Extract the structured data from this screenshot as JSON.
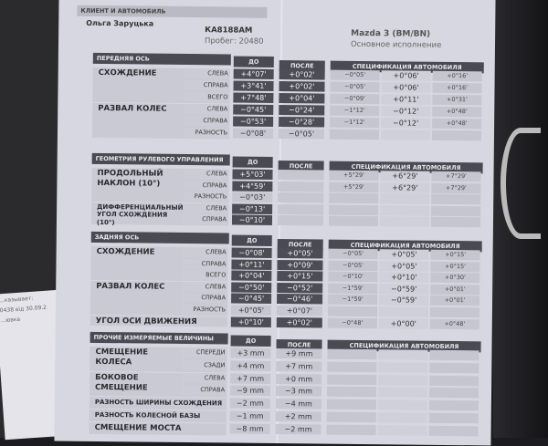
{
  "client_section": {
    "title": "КЛИЕНТ И АВТОМОБИЛЬ",
    "client_name": "Ольга Заруцька",
    "plate": "КА8188АМ",
    "mileage": "Пробег: 20480",
    "car_model": "Mazda 3 (BM/BN)",
    "car_variant": "Основное исполнение"
  },
  "columns": {
    "before": "ДО",
    "after": "ПОСЛЕ",
    "spec": "СПЕЦИФИКАЦИЯ АВТОМОБИЛЯ"
  },
  "sections": [
    {
      "title": "ПЕРЕДНЯЯ ОСЬ",
      "groups": [
        {
          "label": "СХОЖДЕНИЕ",
          "rows": [
            {
              "side": "СЛЕВА",
              "before": "+4°07'",
              "after": "+0°02'",
              "spec": [
                "−0°05'",
                "+0°06'",
                "+0°16'"
              ]
            },
            {
              "side": "СПРАВА",
              "before": "+3°41'",
              "after": "+0°02'",
              "spec": [
                "−0°05'",
                "+0°06'",
                "+0°16'"
              ]
            },
            {
              "side": "ВСЕГО",
              "before": "+7°48'",
              "after": "+0°04'",
              "spec": [
                "−0°09'",
                "+0°11'",
                "+0°31'"
              ]
            }
          ]
        },
        {
          "label": "РАЗВАЛ КОЛЕС",
          "rows": [
            {
              "side": "СЛЕВА",
              "before": "−0°45'",
              "after": "−0°24'",
              "spec": [
                "−1°12'",
                "−0°12'",
                "+0°48'"
              ]
            },
            {
              "side": "СПРАВА",
              "before": "−0°53'",
              "after": "−0°28'",
              "spec": [
                "−1°12'",
                "−0°12'",
                "+0°48'"
              ]
            },
            {
              "side": "РАЗНОСТЬ",
              "before": "−0°08'",
              "after": "−0°05'",
              "spec": [
                "",
                "",
                ""
              ]
            }
          ]
        }
      ]
    },
    {
      "title": "ГЕОМЕТРИЯ РУЛЕВОГО УПРАВЛЕНИЯ",
      "groups": [
        {
          "label": "ПРОДОЛЬНЫЙ НАКЛОН (10°)",
          "rows": [
            {
              "side": "СЛЕВА",
              "before": "+5°03'",
              "after": "",
              "spec": [
                "+5°29'",
                "+6°29'",
                "+7°29'"
              ]
            },
            {
              "side": "СПРАВА",
              "before": "+4°59'",
              "after": "",
              "spec": [
                "+5°29'",
                "+6°29'",
                "+7°29'"
              ]
            },
            {
              "side": "РАЗНОСТЬ",
              "before": "−0°03'",
              "after": "",
              "spec": [
                "",
                "",
                ""
              ]
            }
          ]
        },
        {
          "label": "ДИФФЕРЕНЦИАЛЬНЫЙ УГОЛ СХОЖДЕНИЯ (10°)",
          "rows": [
            {
              "side": "СЛЕВА",
              "before": "−0°13'",
              "after": "",
              "spec": [
                "",
                "",
                ""
              ]
            },
            {
              "side": "СПРАВА",
              "before": "−0°10'",
              "after": "",
              "spec": [
                "",
                "",
                ""
              ]
            }
          ]
        }
      ]
    },
    {
      "title": "ЗАДНЯЯ ОСЬ",
      "groups": [
        {
          "label": "СХОЖДЕНИЕ",
          "rows": [
            {
              "side": "СЛЕВА",
              "before": "−0°08'",
              "after": "+0°05'",
              "spec": [
                "−0°05'",
                "+0°05'",
                "+0°15'"
              ]
            },
            {
              "side": "СПРАВА",
              "before": "+0°11'",
              "after": "+0°09'",
              "spec": [
                "−0°05'",
                "+0°05'",
                "+0°15'"
              ]
            },
            {
              "side": "ВСЕГО",
              "before": "+0°04'",
              "after": "+0°15'",
              "spec": [
                "−0°10'",
                "+0°10'",
                "+0°30'"
              ]
            }
          ]
        },
        {
          "label": "РАЗВАЛ КОЛЕС",
          "rows": [
            {
              "side": "СЛЕВА",
              "before": "−0°50'",
              "after": "−0°52'",
              "spec": [
                "−1°59'",
                "−0°59'",
                "+0°01'"
              ]
            },
            {
              "side": "СПРАВА",
              "before": "−0°45'",
              "after": "−0°46'",
              "spec": [
                "−1°59'",
                "−0°59'",
                "+0°01'"
              ]
            },
            {
              "side": "РАЗНОСТЬ",
              "before": "+0°05'",
              "after": "+0°07'",
              "spec": [
                "",
                "",
                ""
              ]
            }
          ]
        },
        {
          "label": "УГОЛ ОСИ ДВИЖЕНИЯ",
          "rows": [
            {
              "side": "",
              "before": "+0°10'",
              "after": "+0°02'",
              "spec": [
                "−0°48'",
                "+0°00'",
                "+0°48'"
              ]
            }
          ]
        }
      ]
    },
    {
      "title": "ПРОЧИЕ ИЗМЕРЯЕМЫЕ ВЕЛИЧИНЫ",
      "groups": [
        {
          "label": "СМЕЩЕНИЕ КОЛЕСА",
          "rows": [
            {
              "side": "СПЕРЕДИ",
              "before": "+3 mm",
              "after": "+9 mm",
              "spec": [
                "",
                "",
                ""
              ]
            },
            {
              "side": "СЗАДИ",
              "before": "+4 mm",
              "after": "+7 mm",
              "spec": [
                "",
                "",
                ""
              ]
            }
          ]
        },
        {
          "label": "БОКОВОЕ СМЕЩЕНИЕ",
          "rows": [
            {
              "side": "СЛЕВА",
              "before": "+7 mm",
              "after": "+0 mm",
              "spec": [
                "",
                "",
                ""
              ]
            },
            {
              "side": "СПРАВА",
              "before": "−9 mm",
              "after": "−3 mm",
              "spec": [
                "",
                "",
                ""
              ]
            }
          ]
        },
        {
          "label": "РАЗНОСТЬ ШИРИНЫ СХОЖДЕНИЯ",
          "rows": [
            {
              "side": "",
              "before": "−2 mm",
              "after": "−4 mm",
              "spec": [
                "",
                "",
                ""
              ]
            }
          ]
        },
        {
          "label": "РАЗНОСТЬ КОЛЕСНОЙ БАЗЫ",
          "rows": [
            {
              "side": "",
              "before": "−1 mm",
              "after": "+2 mm",
              "spec": [
                "",
                "",
                ""
              ]
            }
          ]
        },
        {
          "label": "СМЕЩЕНИЕ МОСТА",
          "rows": [
            {
              "side": "",
              "before": "−8 mm",
              "after": "−2 mm",
              "spec": [
                "",
                "",
                ""
              ]
            }
          ]
        }
      ]
    }
  ],
  "left_paper": {
    "lines": [
      "...казывает:",
      "0438 від 30.09.2",
      "...ювка"
    ]
  }
}
